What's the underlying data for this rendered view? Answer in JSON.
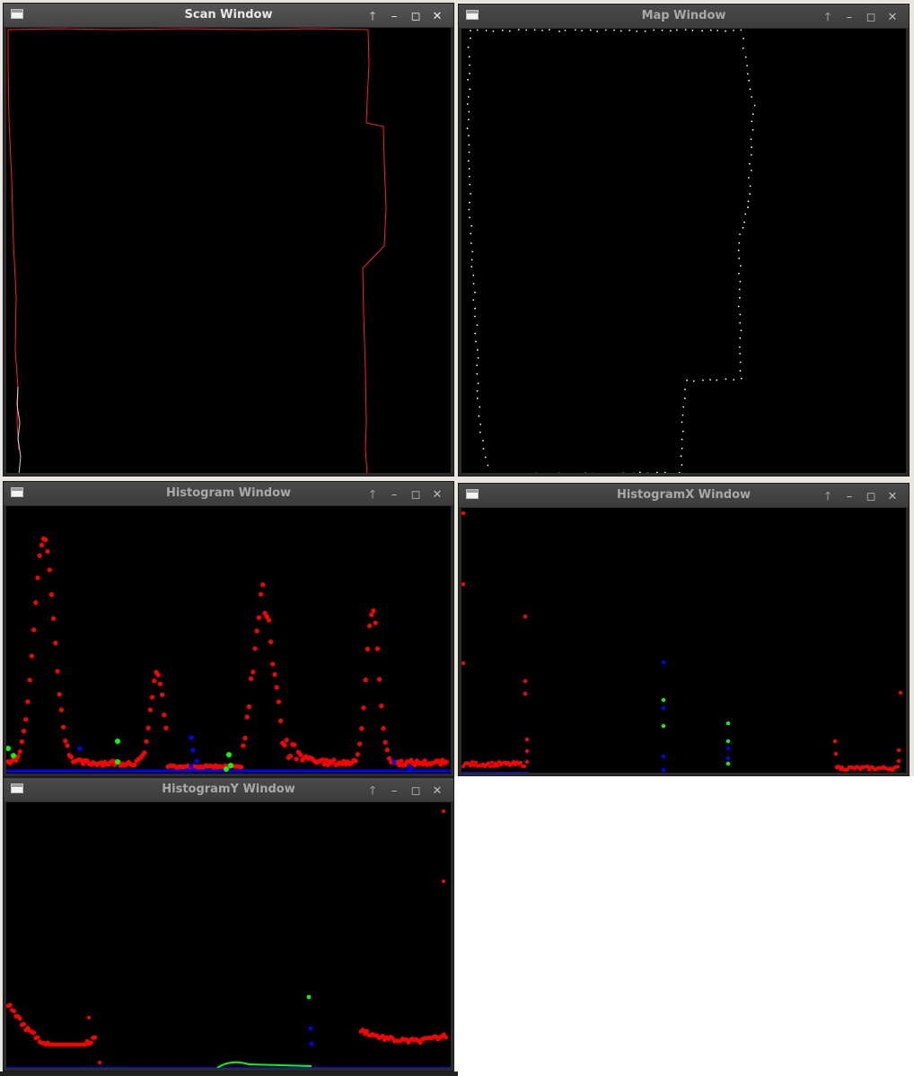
{
  "desktop": {
    "background": "#ffffff"
  },
  "windows": {
    "scan": {
      "title": "Scan Window",
      "active": true
    },
    "map": {
      "title": "Map Window",
      "active": false
    },
    "hist": {
      "title": "Histogram Window",
      "active": false
    },
    "histx": {
      "title": "HistogramX Window",
      "active": false
    },
    "histy": {
      "title": "HistogramY Window",
      "active": false
    }
  },
  "controls": {
    "up": "🡑",
    "minimize": "–",
    "maximize": "◻",
    "close": "✕"
  },
  "colors": {
    "scan_line": "#ff2020",
    "map_points": "#ffffff",
    "hist_red": "#ff0000",
    "hist_green": "#00ff00",
    "hist_blue": "#0000ff"
  },
  "icons": {
    "window": "app-window-icon",
    "up": "keep-above-icon",
    "minimize": "minimize-icon",
    "maximize": "maximize-icon",
    "close": "close-icon"
  }
}
